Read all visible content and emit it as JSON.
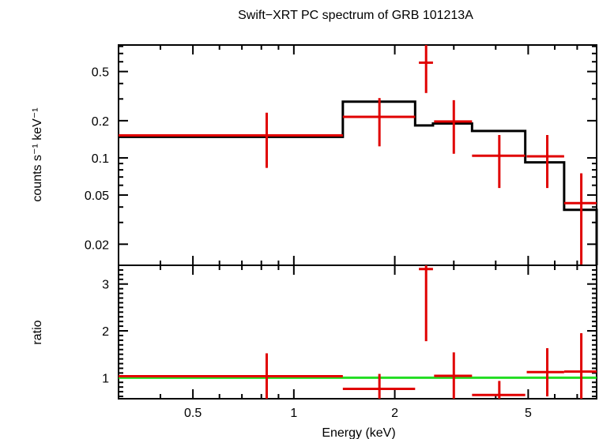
{
  "chart_data": {
    "type": "spectrum",
    "title": "Swift−XRT PC spectrum of GRB 101213A",
    "xlabel": "Energy (keV)",
    "x_scale": "log",
    "xlim": [
      0.3,
      8.0
    ],
    "x_ticks": [
      0.5,
      1,
      2,
      5
    ],
    "x_tick_labels": [
      "0.5",
      "1",
      "2",
      "5"
    ],
    "colors": {
      "data": "#e00000",
      "model": "#000000",
      "unity": "#22dd22",
      "frame": "#000000"
    },
    "panels": [
      {
        "name": "spectrum",
        "ylabel": "counts s⁻¹ keV⁻¹",
        "y_scale": "log",
        "ylim": [
          0.0135,
          0.82
        ],
        "y_ticks": [
          0.02,
          0.05,
          0.1,
          0.2,
          0.5
        ],
        "y_tick_labels": [
          "0.02",
          "0.05",
          "0.1",
          "0.2",
          "0.5"
        ],
        "data": [
          {
            "x": 0.83,
            "xlo": 0.3,
            "xhi": 1.4,
            "y": 0.152,
            "ylo": 0.083,
            "yhi": 0.232
          },
          {
            "x": 1.8,
            "xlo": 1.4,
            "xhi": 2.3,
            "y": 0.215,
            "ylo": 0.124,
            "yhi": 0.305
          },
          {
            "x": 2.48,
            "xlo": 2.36,
            "xhi": 2.6,
            "y": 0.59,
            "ylo": 0.335,
            "yhi": 0.82
          },
          {
            "x": 3.0,
            "xlo": 2.62,
            "xhi": 3.4,
            "y": 0.197,
            "ylo": 0.108,
            "yhi": 0.293
          },
          {
            "x": 4.1,
            "xlo": 3.4,
            "xhi": 4.9,
            "y": 0.104,
            "ylo": 0.057,
            "yhi": 0.153
          },
          {
            "x": 5.7,
            "xlo": 4.95,
            "xhi": 6.4,
            "y": 0.103,
            "ylo": 0.057,
            "yhi": 0.153
          },
          {
            "x": 7.2,
            "xlo": 6.4,
            "xhi": 8.0,
            "y": 0.043,
            "ylo": 0.0135,
            "yhi": 0.075
          }
        ],
        "model": [
          {
            "xlo": 0.3,
            "xhi": 1.4,
            "y": 0.148
          },
          {
            "xlo": 1.4,
            "xhi": 2.3,
            "y": 0.285
          },
          {
            "xlo": 2.3,
            "xhi": 2.6,
            "y": 0.183
          },
          {
            "xlo": 2.6,
            "xhi": 3.4,
            "y": 0.19
          },
          {
            "xlo": 3.4,
            "xhi": 4.9,
            "y": 0.165
          },
          {
            "xlo": 4.9,
            "xhi": 6.4,
            "y": 0.092
          },
          {
            "xlo": 6.4,
            "xhi": 8.0,
            "y": 0.038
          }
        ]
      },
      {
        "name": "ratio",
        "ylabel": "ratio",
        "y_scale": "linear",
        "ylim": [
          0.55,
          3.4
        ],
        "y_ticks": [
          1,
          2,
          3
        ],
        "y_tick_labels": [
          "1",
          "2",
          "3"
        ],
        "unity": 1.0,
        "data": [
          {
            "x": 0.83,
            "xlo": 0.3,
            "xhi": 1.4,
            "y": 1.03,
            "ylo": 0.55,
            "yhi": 1.52
          },
          {
            "x": 1.8,
            "xlo": 1.4,
            "xhi": 2.3,
            "y": 0.76,
            "ylo": 0.55,
            "yhi": 1.08
          },
          {
            "x": 2.48,
            "xlo": 2.36,
            "xhi": 2.6,
            "y": 3.32,
            "ylo": 1.78,
            "yhi": 3.4
          },
          {
            "x": 3.0,
            "xlo": 2.62,
            "xhi": 3.4,
            "y": 1.04,
            "ylo": 0.55,
            "yhi": 1.54
          },
          {
            "x": 4.1,
            "xlo": 3.4,
            "xhi": 4.9,
            "y": 0.63,
            "ylo": 0.55,
            "yhi": 0.93
          },
          {
            "x": 5.7,
            "xlo": 4.95,
            "xhi": 6.4,
            "y": 1.12,
            "ylo": 0.6,
            "yhi": 1.63
          },
          {
            "x": 7.2,
            "xlo": 6.4,
            "xhi": 8.0,
            "y": 1.13,
            "ylo": 0.55,
            "yhi": 1.95
          }
        ]
      }
    ]
  }
}
